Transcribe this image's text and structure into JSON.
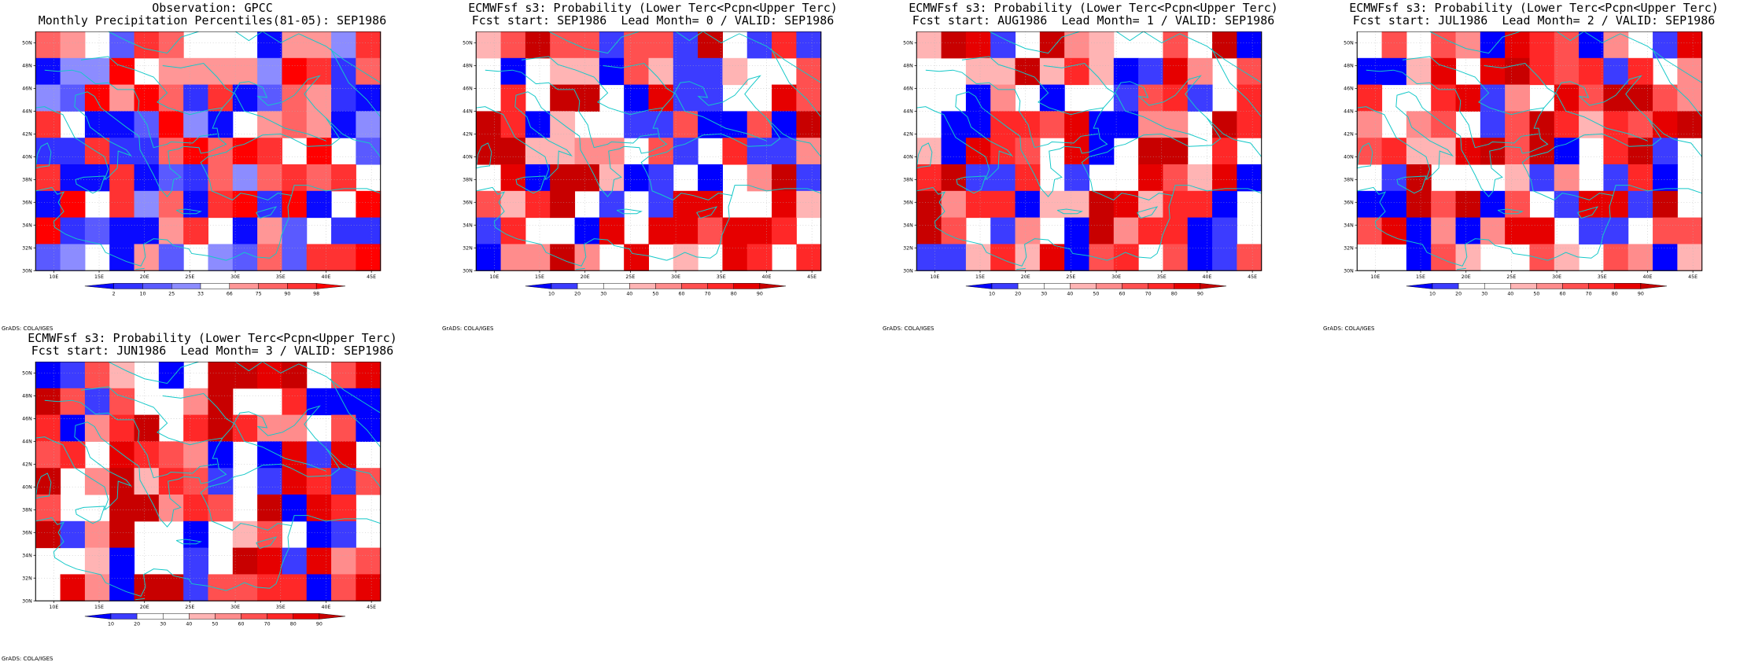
{
  "panels": [
    {
      "id": "obs",
      "title_line1": "Observation: GPCC",
      "title_line2": "Monthly Precipitation Percentiles(81-05): SEP1986",
      "colorbar_labels": [
        "2",
        "10",
        "25",
        "33",
        "66",
        "75",
        "90",
        "98"
      ],
      "colorbar_colors": [
        "#0a0aff",
        "#3232ff",
        "#5a5aff",
        "#8c8cff",
        "#ffffff",
        "#ff9696",
        "#ff6464",
        "#ff3232",
        "#ff0000"
      ],
      "credit": "GrADS: COLA/IGES"
    },
    {
      "id": "lead0",
      "title_line1": "ECMWFsf s3: Probability (Lower Terc<Pcpn<Upper Terc)",
      "title_line2": "Fcst start: SEP1986  Lead Month= 0 / VALID: SEP1986",
      "colorbar_labels": [
        "10",
        "20",
        "30",
        "40",
        "50",
        "60",
        "70",
        "80",
        "90"
      ],
      "colorbar_colors": [
        "#0000ff",
        "#3c3cff",
        "#ffffff",
        "#ffffff",
        "#ffb4b4",
        "#ff8c8c",
        "#ff5050",
        "#ff2828",
        "#e60000",
        "#c80000"
      ],
      "credit": "GrADS: COLA/IGES"
    },
    {
      "id": "lead1",
      "title_line1": "ECMWFsf s3: Probability (Lower Terc<Pcpn<Upper Terc)",
      "title_line2": "Fcst start: AUG1986  Lead Month= 1 / VALID: SEP1986",
      "colorbar_labels": [
        "10",
        "20",
        "30",
        "40",
        "50",
        "60",
        "70",
        "80",
        "90"
      ],
      "colorbar_colors": [
        "#0000ff",
        "#3c3cff",
        "#ffffff",
        "#ffffff",
        "#ffb4b4",
        "#ff8c8c",
        "#ff5050",
        "#ff2828",
        "#e60000",
        "#c80000"
      ],
      "credit": "GrADS: COLA/IGES"
    },
    {
      "id": "lead2",
      "title_line1": "ECMWFsf s3: Probability (Lower Terc<Pcpn<Upper Terc)",
      "title_line2": "Fcst start: JUL1986  Lead Month= 2 / VALID: SEP1986",
      "colorbar_labels": [
        "10",
        "20",
        "30",
        "40",
        "50",
        "60",
        "70",
        "80",
        "90"
      ],
      "colorbar_colors": [
        "#0000ff",
        "#3c3cff",
        "#ffffff",
        "#ffffff",
        "#ffb4b4",
        "#ff8c8c",
        "#ff5050",
        "#ff2828",
        "#e60000",
        "#c80000"
      ],
      "credit": "GrADS: COLA/IGES"
    },
    {
      "id": "lead3",
      "title_line1": "ECMWFsf s3: Probability (Lower Terc<Pcpn<Upper Terc)",
      "title_line2": "Fcst start: JUN1986  Lead Month= 3 / VALID: SEP1986",
      "colorbar_labels": [
        "10",
        "20",
        "30",
        "40",
        "50",
        "60",
        "70",
        "80",
        "90"
      ],
      "colorbar_colors": [
        "#0000ff",
        "#3c3cff",
        "#ffffff",
        "#ffffff",
        "#ffb4b4",
        "#ff8c8c",
        "#ff5050",
        "#ff2828",
        "#e60000",
        "#c80000"
      ],
      "credit": "GrADS: COLA/IGES"
    }
  ],
  "map": {
    "lon_range": [
      8,
      46
    ],
    "lat_range": [
      30,
      51
    ],
    "lon_labels": [
      "10E",
      "15E",
      "20E",
      "25E",
      "30E",
      "35E",
      "40E",
      "45E"
    ],
    "lat_labels": [
      "30N",
      "32N",
      "34N",
      "36N",
      "38N",
      "40N",
      "42N",
      "44N",
      "46N",
      "48N",
      "50N"
    ],
    "coastline_color": "#14c8c8",
    "grid_color": "#b4b4b4"
  }
}
